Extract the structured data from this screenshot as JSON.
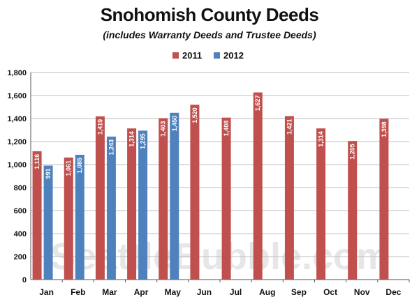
{
  "watermark": "SeattleBubble.com",
  "chart_data": {
    "type": "bar",
    "title": "Snohomish County Deeds",
    "subtitle": "(includes Warranty Deeds and Trustee Deeds)",
    "categories": [
      "Jan",
      "Feb",
      "Mar",
      "Apr",
      "May",
      "Jun",
      "Jul",
      "Aug",
      "Sep",
      "Oct",
      "Nov",
      "Dec"
    ],
    "series": [
      {
        "name": "2011",
        "color": "#c0504d",
        "values": [
          1116,
          1061,
          1419,
          1314,
          1403,
          1520,
          1408,
          1627,
          1421,
          1314,
          1205,
          1398
        ],
        "labels": [
          "1,116",
          "1,061",
          "1,419",
          "1,314",
          "1,403",
          "1,520",
          "1,408",
          "1,627",
          "1,421",
          "1,314",
          "1,205",
          "1,398"
        ]
      },
      {
        "name": "2012",
        "color": "#4f81bd",
        "values": [
          991,
          1085,
          1243,
          1295,
          1450,
          null,
          null,
          null,
          null,
          null,
          null,
          null
        ],
        "labels": [
          "991",
          "1,085",
          "1,243",
          "1,295",
          "1,450",
          null,
          null,
          null,
          null,
          null,
          null,
          null
        ]
      }
    ],
    "yticks": [
      "0",
      "200",
      "400",
      "600",
      "800",
      "1,000",
      "1,200",
      "1,400",
      "1,600",
      "1,800"
    ],
    "ylim": [
      0,
      1800
    ],
    "grid": true,
    "legend": "top-center"
  }
}
